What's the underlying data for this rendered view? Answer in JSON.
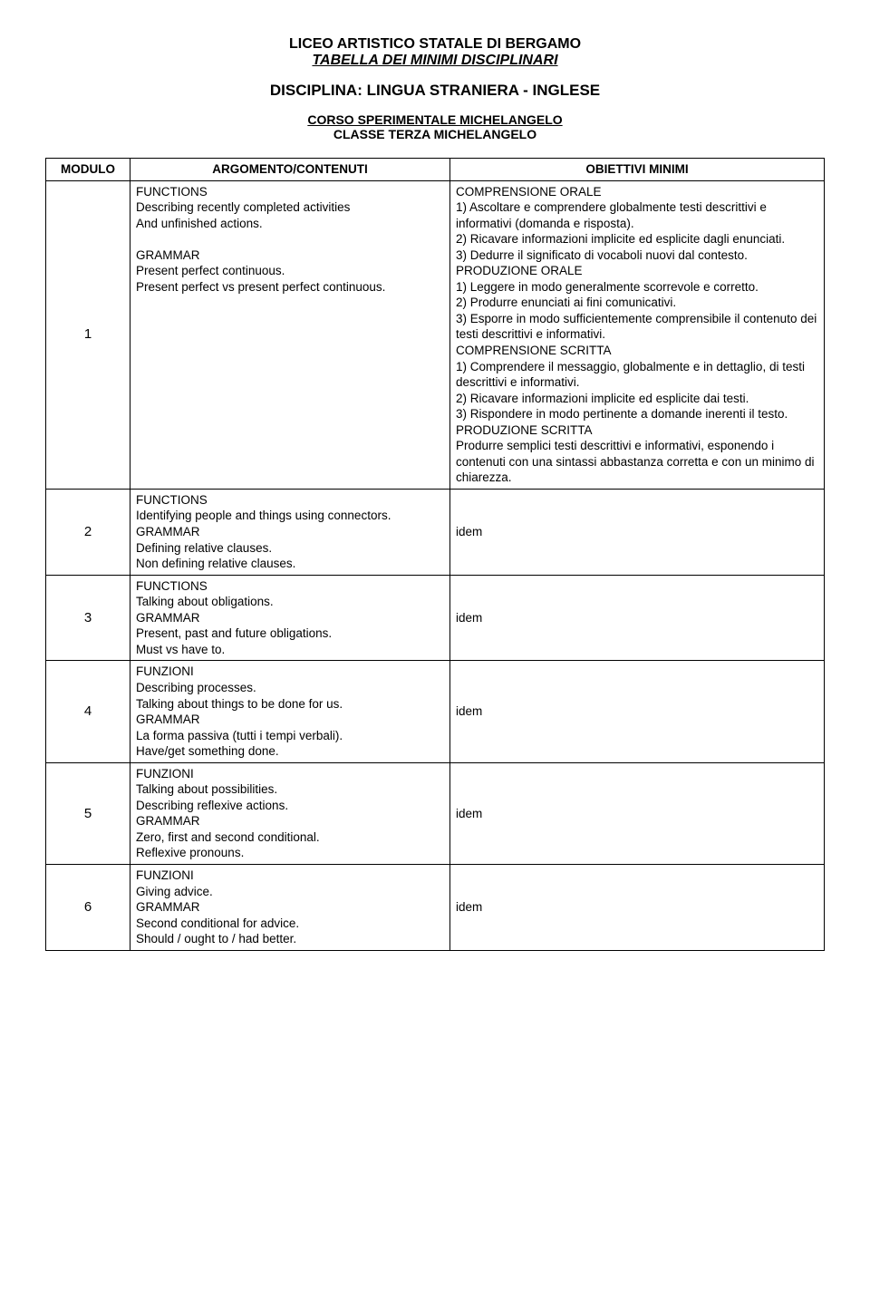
{
  "header": {
    "school": "LICEO ARTISTICO STATALE DI BERGAMO",
    "subtitle": "TABELLA DEI MINIMI DISCIPLINARI",
    "discipline": "DISCIPLINA: LINGUA STRANIERA - INGLESE",
    "course": "CORSO SPERIMENTALE MICHELANGELO",
    "class": "CLASSE TERZA MICHELANGELO"
  },
  "table": {
    "headers": {
      "modulo": "MODULO",
      "argomento": "ARGOMENTO/CONTENUTI",
      "obiettivi": "OBIETTIVI MINIMI"
    },
    "rows": [
      {
        "num": "1",
        "arg": {
          "l1": "FUNCTIONS",
          "l2": "Describing recently completed activities",
          "l3": "And unfinished actions.",
          "l4": "",
          "l5": "GRAMMAR",
          "l6": "Present perfect continuous.",
          "l7": "Present perfect vs present perfect continuous."
        },
        "obj": {
          "s1": "COMPRENSIONE ORALE",
          "s1a": "1) Ascoltare e comprendere globalmente testi descrittivi e informativi (domanda e risposta).",
          "s1b": "2) Ricavare informazioni implicite ed esplicite dagli enunciati.",
          "s1c": "3) Dedurre il significato di vocaboli nuovi dal contesto.",
          "s2": "PRODUZIONE ORALE",
          "s2a": "1) Leggere in modo generalmente scorrevole e corretto.",
          "s2b": "2) Produrre enunciati ai fini comunicativi.",
          "s2c": "3) Esporre in modo sufficientemente comprensibile il contenuto dei testi descrittivi e informativi.",
          "s3": "COMPRENSIONE SCRITTA",
          "s3a": "1) Comprendere il messaggio, globalmente e in dettaglio, di testi descrittivi e informativi.",
          "s3b": "2) Ricavare informazioni implicite ed esplicite dai testi.",
          "s3c": "3) Rispondere in modo pertinente a domande inerenti il testo.",
          "s4": "PRODUZIONE SCRITTA",
          "s4a": "Produrre semplici testi descrittivi e informativi, esponendo i contenuti con una sintassi abbastanza corretta e con un minimo di chiarezza."
        }
      },
      {
        "num": "2",
        "arg": {
          "l1": "FUNCTIONS",
          "l2": "Identifying people and things using connectors.",
          "l3": "GRAMMAR",
          "l4": "Defining relative clauses.",
          "l5": "Non defining relative clauses."
        },
        "obj": "idem"
      },
      {
        "num": "3",
        "arg": {
          "l1": "FUNCTIONS",
          "l2": "Talking about obligations.",
          "l3": "GRAMMAR",
          "l4": "Present, past and future obligations.",
          "l5": "Must vs have to."
        },
        "obj": "idem"
      },
      {
        "num": "4",
        "arg": {
          "l1": "FUNZIONI",
          "l2": "Describing processes.",
          "l3": "Talking about things to be done for us.",
          "l4": "GRAMMAR",
          "l5": "La forma passiva (tutti i tempi verbali).",
          "l6": "Have/get something done."
        },
        "obj": "idem"
      },
      {
        "num": "5",
        "arg": {
          "l1": "FUNZIONI",
          "l2": "Talking about possibilities.",
          "l3": "Describing reflexive actions.",
          "l4": "GRAMMAR",
          "l5": "Zero, first and second conditional.",
          "l6": "Reflexive pronouns."
        },
        "obj": "idem"
      },
      {
        "num": "6",
        "arg": {
          "l1": "FUNZIONI",
          "l2": "Giving advice.",
          "l3": "GRAMMAR",
          "l4": "Second conditional for advice.",
          "l5": "Should / ought to / had better."
        },
        "obj": "idem"
      }
    ]
  }
}
